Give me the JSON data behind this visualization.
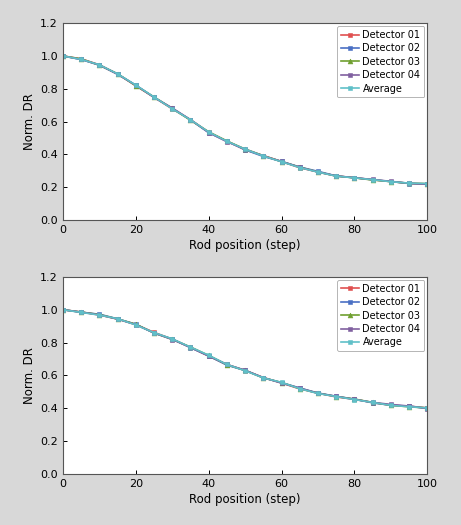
{
  "x": [
    0,
    5,
    10,
    15,
    20,
    25,
    30,
    35,
    40,
    45,
    50,
    55,
    60,
    65,
    70,
    75,
    80,
    85,
    90,
    95,
    100
  ],
  "top_y": [
    1.0,
    0.98,
    0.945,
    0.89,
    0.82,
    0.75,
    0.68,
    0.61,
    0.535,
    0.48,
    0.43,
    0.39,
    0.355,
    0.32,
    0.295,
    0.27,
    0.26,
    0.245,
    0.235,
    0.225,
    0.22
  ],
  "bot_y": [
    1.0,
    0.985,
    0.97,
    0.945,
    0.91,
    0.86,
    0.82,
    0.77,
    0.72,
    0.665,
    0.63,
    0.585,
    0.555,
    0.52,
    0.49,
    0.47,
    0.455,
    0.435,
    0.42,
    0.41,
    0.4
  ],
  "detectors": [
    "Detector 01",
    "Detector 02",
    "Detector 03",
    "Detector 04",
    "Average"
  ],
  "colors": [
    "#e05050",
    "#4a70c4",
    "#70a030",
    "#8060a0",
    "#60c0c8"
  ],
  "markers": [
    "s",
    "s",
    "^",
    "s",
    "s"
  ],
  "ylabel": "Norm. DR",
  "xlabel": "Rod position (step)",
  "ylim": [
    0.0,
    1.2
  ],
  "xlim": [
    0,
    100
  ],
  "yticks": [
    0.0,
    0.2,
    0.4,
    0.6,
    0.8,
    1.0,
    1.2
  ],
  "xticks": [
    0,
    20,
    40,
    60,
    80,
    100
  ],
  "outer_bg": "#d8d8d8",
  "plot_bg": "#ffffff",
  "panel_bg": "#ffffff"
}
